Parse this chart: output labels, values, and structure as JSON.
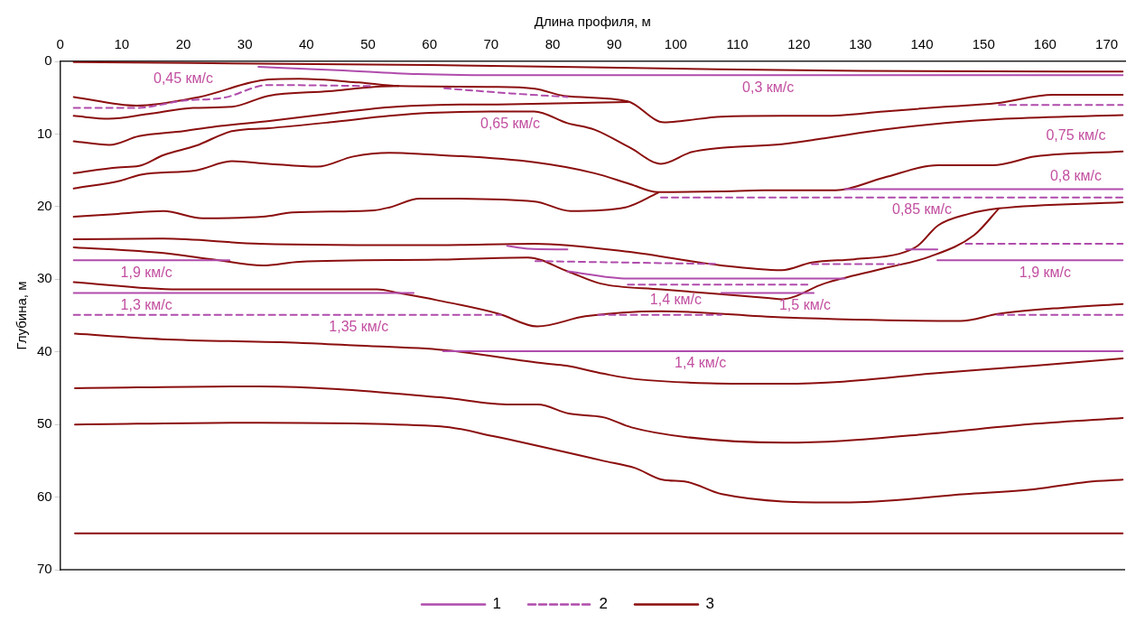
{
  "chart_data": {
    "type": "line",
    "xlabel": "Длина профиля, м",
    "ylabel": "Глубина, м",
    "xlim": [
      0,
      173
    ],
    "xticks": [
      0,
      10,
      20,
      30,
      40,
      50,
      60,
      70,
      80,
      90,
      100,
      110,
      120,
      130,
      140,
      150,
      160,
      170
    ],
    "ylim": [
      70,
      0
    ],
    "yticks": [
      0,
      10,
      20,
      30,
      40,
      50,
      60,
      70
    ],
    "grid": false,
    "legend": "bottom",
    "marker": "none",
    "series": [
      {
        "name": "1",
        "color": "#b04cac",
        "line_style": "solid",
        "x": [
          32.2,
          45,
          58,
          70,
          172.6
        ],
        "values": [
          0.75,
          1.2,
          1.75,
          1.9,
          1.9
        ]
      },
      {
        "color": "#b04cac",
        "line_style": "solid",
        "x": [
          127.5,
          172.6
        ],
        "values": [
          17.6,
          17.6
        ]
      },
      {
        "color": "#b04cac",
        "line_style": "solid",
        "x": [
          2.2,
          27.5
        ],
        "values": [
          27.4,
          27.4
        ]
      },
      {
        "color": "#b04cac",
        "line_style": "solid",
        "x": [
          72.6,
          76,
          82.4
        ],
        "values": [
          25.4,
          25.8,
          25.9
        ]
      },
      {
        "color": "#b04cac",
        "line_style": "solid",
        "x": [
          82.4,
          92.2,
          127.5
        ],
        "values": [
          28.9,
          29.9,
          29.9
        ]
      },
      {
        "color": "#b04cac",
        "line_style": "solid",
        "x": [
          107.4,
          122.4
        ],
        "values": [
          31.9,
          31.9
        ]
      },
      {
        "color": "#b04cac",
        "line_style": "solid",
        "x": [
          137.4,
          142.5
        ],
        "values": [
          25.9,
          25.9
        ]
      },
      {
        "color": "#b04cac",
        "line_style": "solid",
        "x": [
          142.5,
          172.6
        ],
        "values": [
          27.4,
          27.4
        ]
      },
      {
        "color": "#b04cac",
        "line_style": "solid",
        "x": [
          2.2,
          57.4
        ],
        "values": [
          31.9,
          31.9
        ]
      },
      {
        "color": "#b04cac",
        "line_style": "solid",
        "x": [
          62.2,
          172.6
        ],
        "values": [
          39.9,
          39.9
        ]
      },
      {
        "name": "2",
        "color": "#b04cac",
        "line_style": "dashed",
        "x": [
          2.2,
          12.4,
          20,
          26.6,
          33.8,
          51
        ],
        "values": [
          6.4,
          6.4,
          5.4,
          5,
          3.25,
          3.4
        ]
      },
      {
        "color": "#b04cac",
        "line_style": "dashed",
        "x": [
          62.4,
          73.1,
          82.4
        ],
        "values": [
          3.7,
          4.4,
          4.9
        ]
      },
      {
        "color": "#b04cac",
        "line_style": "dashed",
        "x": [
          152.5,
          172.6
        ],
        "values": [
          6,
          6
        ]
      },
      {
        "color": "#b04cac",
        "line_style": "dashed",
        "x": [
          97.6,
          172.6
        ],
        "values": [
          18.75,
          18.75
        ]
      },
      {
        "color": "#b04cac",
        "line_style": "dashed",
        "x": [
          147.1,
          172.6
        ],
        "values": [
          25.1,
          25.1
        ]
      },
      {
        "color": "#b04cac",
        "line_style": "dashed",
        "x": [
          77.2,
          106.9
        ],
        "values": [
          27.5,
          27.9
        ]
      },
      {
        "color": "#b04cac",
        "line_style": "dashed",
        "x": [
          122.1,
          136.3
        ],
        "values": [
          27.9,
          27.9
        ]
      },
      {
        "color": "#b04cac",
        "line_style": "dashed",
        "x": [
          92.2,
          121.6
        ],
        "values": [
          30.75,
          30.75
        ]
      },
      {
        "color": "#b04cac",
        "line_style": "dashed",
        "x": [
          2.2,
          71.6
        ],
        "values": [
          34.9,
          34.9
        ]
      },
      {
        "color": "#b04cac",
        "line_style": "dashed",
        "x": [
          87.4,
          107.4
        ],
        "values": [
          34.9,
          34.9
        ]
      },
      {
        "color": "#b04cac",
        "line_style": "dashed",
        "x": [
          152.2,
          172.6
        ],
        "values": [
          34.9,
          34.9
        ]
      },
      {
        "name": "3",
        "color": "#8b0e0e",
        "line_style": "solid",
        "x": [
          2.2,
          60,
          100,
          130,
          172.6
        ],
        "values": [
          0.1,
          0.5,
          1,
          1.3,
          1.4
        ]
      },
      {
        "color": "#8b0e0e",
        "line_style": "solid",
        "x": [
          2.2,
          12.4,
          22.6,
          33.8,
          38.8,
          48.5,
          55,
          70.3,
          77.1,
          81.9,
          92.2,
          98.1,
          101,
          107.4,
          117.2,
          124.1,
          133.8,
          143.7,
          152.1,
          161.3,
          172.6
        ],
        "values": [
          4.9,
          6.1,
          4.9,
          2.5,
          2.4,
          2.9,
          3.4,
          3.5,
          3.75,
          4.75,
          5.5,
          8.4,
          8.2,
          7.6,
          7.5,
          7.5,
          6.9,
          6.25,
          5.75,
          4.6,
          4.6
        ]
      },
      {
        "color": "#8b0e0e",
        "line_style": "solid",
        "x": [
          2.2,
          7.9,
          14.3,
          21.6,
          27.9,
          33.8,
          43.7,
          51,
          55
        ],
        "values": [
          7.5,
          7.9,
          7.25,
          6.4,
          6.25,
          4.75,
          4.1,
          3.5,
          3.4
        ]
      },
      {
        "color": "#8b0e0e",
        "line_style": "solid",
        "x": [
          2.2,
          8,
          12.8,
          20,
          26,
          34,
          43.7,
          53.5,
          61.3,
          73,
          92.2
        ],
        "values": [
          11,
          11.5,
          10.3,
          9.6,
          8.9,
          8.2,
          7.2,
          6.3,
          6,
          5.9,
          5.6
        ]
      },
      {
        "color": "#8b0e0e",
        "line_style": "solid",
        "x": [
          2.2,
          9.4,
          12.8,
          16.8,
          22.1,
          27.9,
          33.8,
          43.7,
          53.5,
          60,
          70,
          77,
          82.4,
          86.8,
          92.6,
          97.6,
          102.5,
          107.4,
          117.2,
          124.1,
          133.8,
          143.7,
          153.5,
          172.6
        ],
        "values": [
          15.4,
          14.6,
          14.4,
          12.9,
          11.6,
          9.6,
          9.2,
          8.4,
          7.5,
          7.1,
          6.9,
          6.9,
          8.5,
          9.4,
          11.9,
          14.1,
          12.5,
          11.9,
          11.4,
          10.6,
          9.4,
          8.5,
          7.9,
          7.4
        ]
      },
      {
        "color": "#8b0e0e",
        "line_style": "solid",
        "x": [
          2.2,
          9.9,
          13.1,
          22.1,
          27.9,
          33.8,
          41.8,
          47.6,
          53.5,
          58.4,
          77.1,
          86.8,
          92.6,
          97.1,
          107.4,
          114.3,
          126,
          133.8,
          142.6,
          151.5,
          158.4,
          172.6
        ],
        "values": [
          17.5,
          16.4,
          15.6,
          15,
          13.75,
          14.1,
          14.5,
          13.1,
          12.6,
          12.75,
          13.9,
          15.4,
          16.9,
          18,
          17.9,
          17.75,
          17.75,
          16,
          14.3,
          14.3,
          13.1,
          12.4
        ]
      },
      {
        "color": "#8b0e0e",
        "line_style": "solid",
        "x": [
          2.2,
          9.4,
          16.8,
          23.1,
          32.9,
          37.8,
          51,
          53.5,
          58.4,
          61.3,
          77.1,
          82.9,
          91.8,
          97.1
        ],
        "values": [
          21.4,
          21,
          20.6,
          21.6,
          21.4,
          20.8,
          20.5,
          20.1,
          18.9,
          18.9,
          19.3,
          20.6,
          20.1,
          18.1
        ]
      },
      {
        "color": "#8b0e0e",
        "line_style": "solid",
        "x": [
          2.2,
          16.8,
          32.4,
          61.3,
          77.1,
          92.2,
          107.4,
          117.2,
          122.1,
          129,
          136.3,
          139.3,
          142.6,
          147.6,
          152.5,
          172.6
        ],
        "values": [
          24.5,
          24.4,
          25.1,
          25.3,
          25.1,
          26.2,
          28.1,
          28.75,
          27.7,
          27.25,
          26.5,
          25.4,
          22.6,
          21,
          20.25,
          19.4
        ]
      },
      {
        "color": "#8b0e0e",
        "line_style": "solid",
        "x": [
          2.2,
          16.8,
          25,
          32.9,
          38.8,
          61.3,
          76,
          82.4,
          87.8,
          97.6,
          115.3,
          117.2,
          124.1,
          133.8,
          141.2,
          148.5,
          152.5
        ],
        "values": [
          25.6,
          26.4,
          27.3,
          28.1,
          27.6,
          27.3,
          27,
          28.9,
          30.6,
          31.4,
          32.6,
          32.75,
          30.6,
          28.5,
          26.9,
          23.9,
          20.25
        ]
      },
      {
        "color": "#8b0e0e",
        "line_style": "solid",
        "x": [
          2.2,
          19.1,
          51.5,
          55,
          61.3,
          71.2,
          77.5,
          85.3,
          97.6,
          117.2,
          146.2,
          152.5,
          163.2,
          172.6
        ],
        "values": [
          30.4,
          31.4,
          31.4,
          31.9,
          32.9,
          34.75,
          36.5,
          35.1,
          34.4,
          35.25,
          35.75,
          34.75,
          33.9,
          33.4
        ]
      },
      {
        "color": "#8b0e0e",
        "line_style": "solid",
        "x": [
          2.4,
          16.5,
          38.8,
          47.6,
          62.4,
          78.7,
          82.2,
          88.2,
          93.4,
          117.6,
          127.2,
          141.5,
          158.4,
          172.6
        ],
        "values": [
          37.5,
          38.25,
          38.75,
          39.1,
          39.75,
          41.6,
          41.9,
          43,
          43.75,
          44.4,
          44.1,
          43,
          41.9,
          40.9
        ]
      },
      {
        "color": "#8b0e0e",
        "line_style": "solid",
        "x": [
          2.4,
          32.4,
          61.8,
          73.1,
          77.6,
          82.6,
          88.2,
          92.8,
          101.8,
          117.6,
          127.2,
          141.5,
          158.4,
          172.6
        ],
        "values": [
          45,
          44.75,
          46.25,
          47.25,
          47.25,
          48.5,
          49,
          50.4,
          51.75,
          52.5,
          52.25,
          51.25,
          49.9,
          49.1
        ]
      },
      {
        "color": "#8b0e0e",
        "line_style": "solid",
        "x": [
          2.4,
          32.4,
          61.8,
          70.3,
          88.2,
          93.4,
          97.8,
          101.8,
          107.5,
          127.2,
          147.1,
          158.4,
          166.9,
          172.6
        ],
        "values": [
          50,
          49.75,
          50.25,
          51.6,
          55,
          56,
          57.6,
          57.9,
          59.6,
          60.75,
          59.6,
          58.9,
          57.9,
          57.6
        ]
      },
      {
        "color": "#8b0e0e",
        "line_style": "solid",
        "x": [
          2.4,
          172.6
        ],
        "values": [
          65,
          65
        ]
      }
    ],
    "annotations": [
      {
        "text": "0,45 км/с",
        "x": 20,
        "y": 5.4
      },
      {
        "text": "0,65 км/с",
        "x": 73.1,
        "y": 4.4
      },
      {
        "text": "0,3 км/с",
        "x": 115,
        "y": 1.9
      },
      {
        "text": "0,75 км/с",
        "x": 165,
        "y": 6
      },
      {
        "text": "0,8 км/с",
        "x": 165,
        "y": 17.6
      },
      {
        "text": "0,85 км/с",
        "x": 140,
        "y": 18.75
      },
      {
        "text": "1,9 км/с",
        "x": 14,
        "y": 27.4
      },
      {
        "text": "1,4 км/с",
        "x": 100,
        "y": 29.9
      },
      {
        "text": "1,3 км/с",
        "x": 14,
        "y": 31.9
      },
      {
        "text": "1,5 км/с",
        "x": 121,
        "y": 31.9
      },
      {
        "text": "1,9 км/с",
        "x": 160,
        "y": 27.4
      },
      {
        "text": "1,35 км/с",
        "x": 48.5,
        "y": 34.9
      },
      {
        "text": "1,4 км/с",
        "x": 104,
        "y": 39.9
      }
    ]
  }
}
